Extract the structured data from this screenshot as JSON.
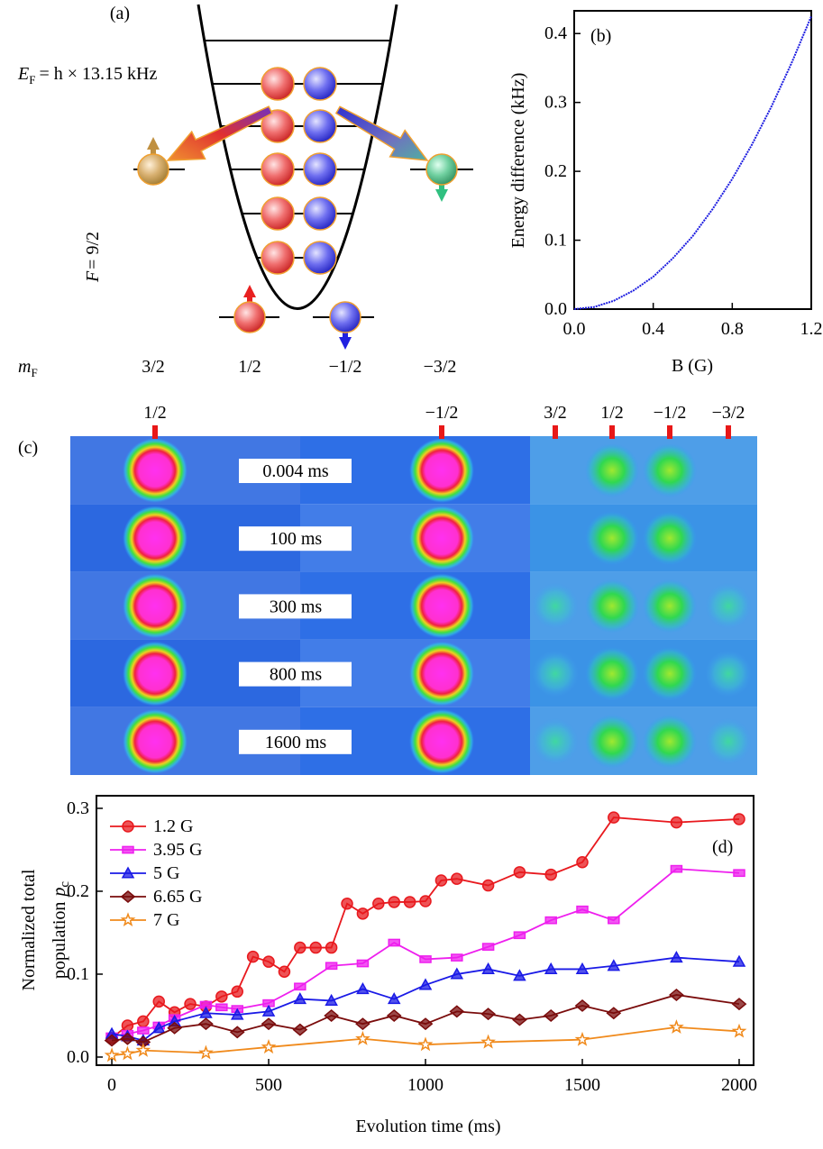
{
  "panel_a": {
    "label": "(a)",
    "fermi_energy": {
      "symbol": "E",
      "subscript": "F",
      "text": "= h × 13.15 kHz"
    },
    "spin": {
      "symbol": "F",
      "text": "= 9/2"
    },
    "mf_symbol": {
      "symbol": "m",
      "subscript": "F"
    },
    "mf_values": [
      "3/2",
      "1/2",
      "−1/2",
      "−3/2"
    ]
  },
  "panel_c": {
    "label": "(c)",
    "column_labels": [
      "1/2",
      "−1/2",
      "3/2",
      "1/2",
      "−1/2",
      "−3/2"
    ],
    "times": [
      "0.004 ms",
      "100 ms",
      "300 ms",
      "800 ms",
      "1600 ms"
    ]
  },
  "chart_data": [
    {
      "type": "line",
      "label": "(b)",
      "xlabel": "B (G)",
      "ylabel": "Energy difference (kHz)",
      "x": [
        0,
        0.1,
        0.2,
        0.3,
        0.4,
        0.5,
        0.6,
        0.7,
        0.8,
        0.9,
        1.0,
        1.1,
        1.2
      ],
      "series": [
        {
          "color": "#1c1ce0",
          "values": [
            0,
            0.003,
            0.012,
            0.027,
            0.047,
            0.074,
            0.106,
            0.145,
            0.189,
            0.239,
            0.295,
            0.357,
            0.425
          ]
        }
      ],
      "xlim": [
        0,
        1.2
      ],
      "ylim": [
        0,
        0.433
      ],
      "xticks": [
        {
          "value": 0,
          "label": "0.0"
        },
        0.4,
        0.8,
        1.2
      ],
      "yticks": [
        {
          "value": 0,
          "label": "0.0"
        },
        0.1,
        0.2,
        0.3,
        0.4
      ]
    },
    {
      "type": "line",
      "label": "(d)",
      "xlabel": "Evolution time (ms)",
      "ylabel": {
        "line1": "Normalized total",
        "line2": "population",
        "symbol": "p",
        "subscript": "c"
      },
      "xlim": [
        -49,
        2046
      ],
      "ylim": [
        -0.0098,
        0.3152
      ],
      "xticks": [
        0,
        500,
        1000,
        1500,
        2000
      ],
      "yticks": [
        {
          "value": 0,
          "label": "0.0"
        },
        0.1,
        0.2,
        0.3
      ],
      "series": [
        {
          "name": "1.2 G",
          "color": "#e8191e",
          "marker": "circle",
          "x": [
            0,
            50,
            100,
            150,
            200,
            250,
            300,
            350,
            400,
            450,
            500,
            550,
            600,
            650,
            700,
            750,
            800,
            850,
            900,
            950,
            1000,
            1050,
            1100,
            1200,
            1300,
            1400,
            1500,
            1600,
            1800,
            2000
          ],
          "values": [
            0.023,
            0.038,
            0.043,
            0.067,
            0.054,
            0.064,
            0.061,
            0.073,
            0.079,
            0.121,
            0.115,
            0.103,
            0.132,
            0.132,
            0.132,
            0.185,
            0.173,
            0.185,
            0.187,
            0.187,
            0.188,
            0.213,
            0.215,
            0.207,
            0.223,
            0.22,
            0.235,
            0.289,
            0.283,
            0.287
          ]
        },
        {
          "name": "3.95 G",
          "color": "#ee1fee",
          "marker": "square",
          "x": [
            0,
            50,
            100,
            150,
            200,
            300,
            350,
            400,
            500,
            600,
            700,
            800,
            900,
            1000,
            1100,
            1200,
            1300,
            1400,
            1500,
            1600,
            1800,
            2000
          ],
          "values": [
            0.025,
            0.028,
            0.032,
            0.038,
            0.047,
            0.063,
            0.06,
            0.058,
            0.065,
            0.085,
            0.11,
            0.113,
            0.138,
            0.118,
            0.12,
            0.133,
            0.147,
            0.165,
            0.178,
            0.165,
            0.227,
            0.222
          ]
        },
        {
          "name": "5 G",
          "color": "#1a1ae6",
          "marker": "triangle",
          "x": [
            0,
            50,
            100,
            150,
            200,
            300,
            400,
            500,
            600,
            700,
            800,
            900,
            1000,
            1100,
            1200,
            1300,
            1400,
            1500,
            1600,
            1800,
            2000
          ],
          "values": [
            0.028,
            0.025,
            0.02,
            0.035,
            0.043,
            0.053,
            0.051,
            0.055,
            0.07,
            0.068,
            0.082,
            0.07,
            0.087,
            0.1,
            0.106,
            0.098,
            0.106,
            0.106,
            0.11,
            0.12,
            0.115
          ]
        },
        {
          "name": "6.65 G",
          "color": "#7a0c0c",
          "marker": "diamond",
          "x": [
            0,
            50,
            100,
            200,
            300,
            400,
            500,
            600,
            700,
            800,
            900,
            1000,
            1100,
            1200,
            1300,
            1400,
            1500,
            1600,
            1800,
            2000
          ],
          "values": [
            0.02,
            0.022,
            0.018,
            0.035,
            0.04,
            0.03,
            0.04,
            0.033,
            0.05,
            0.04,
            0.05,
            0.04,
            0.055,
            0.052,
            0.045,
            0.05,
            0.062,
            0.053,
            0.075,
            0.064
          ]
        },
        {
          "name": "7 G",
          "color": "#f08a1c",
          "marker": "star",
          "x": [
            0,
            50,
            100,
            300,
            500,
            800,
            1000,
            1200,
            1500,
            1800,
            2000
          ],
          "values": [
            0.002,
            0.004,
            0.008,
            0.005,
            0.012,
            0.022,
            0.015,
            0.018,
            0.021,
            0.036,
            0.031
          ]
        }
      ]
    }
  ]
}
